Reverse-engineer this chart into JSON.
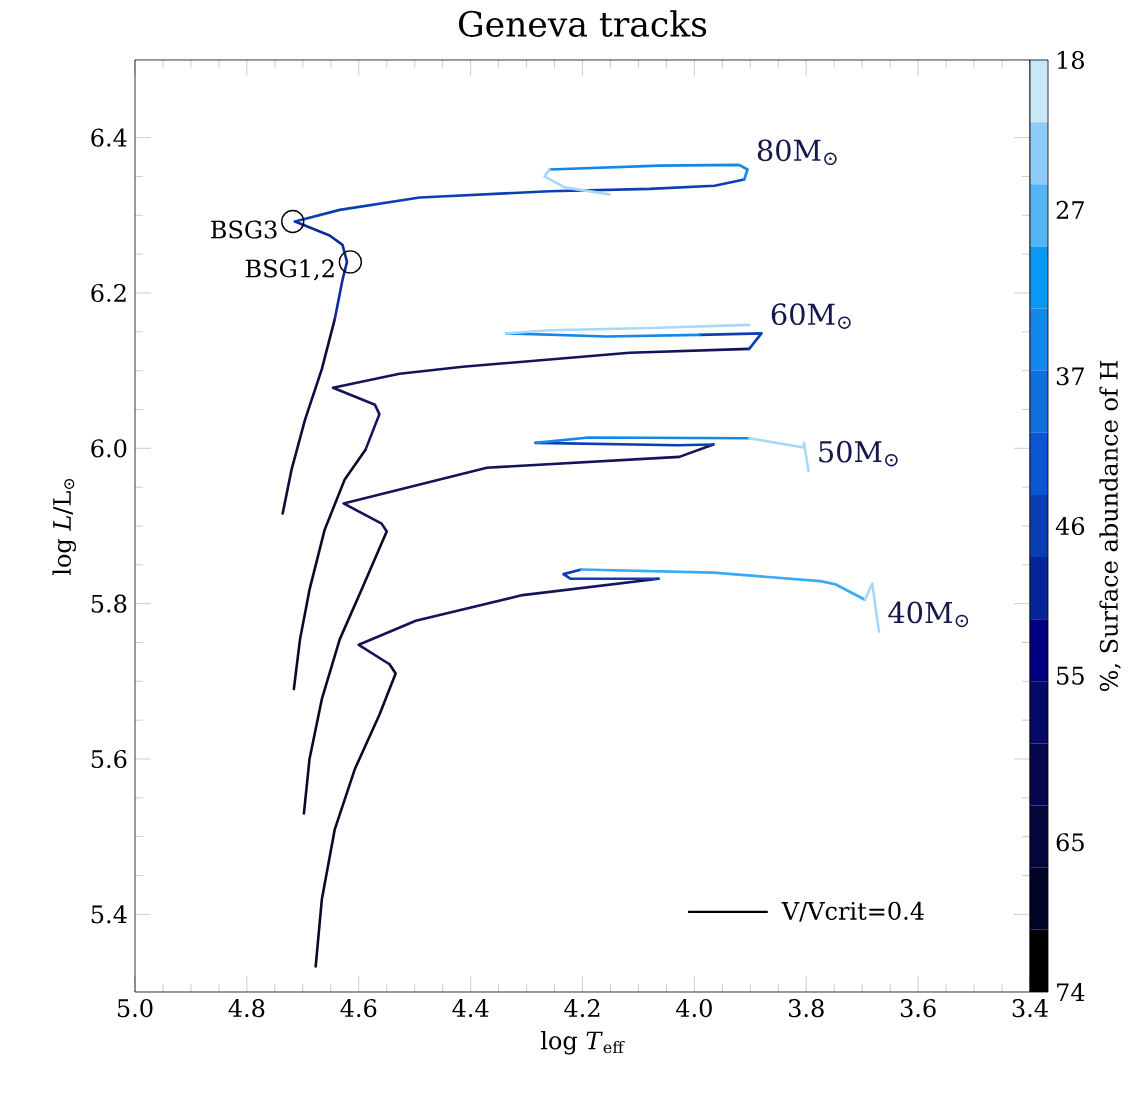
{
  "chart_data": {
    "type": "line",
    "title": "Geneva tracks",
    "xlabel": "log *T*$_{eff}$",
    "ylabel": "log *L*/L$_{⊙}$",
    "clabel": "%, Surface abundance of H",
    "xlim": [
      5.0,
      3.4
    ],
    "xticks": [
      {
        "value": 5.0,
        "label": "5.0"
      },
      4.8,
      4.6,
      4.4,
      4.2,
      {
        "value": 4.0,
        "label": "4.0"
      },
      3.8,
      3.6,
      3.4
    ],
    "ylim": [
      5.3,
      6.5
    ],
    "yticks": [
      5.4,
      5.6,
      5.8,
      {
        "value": 6.0,
        "label": "6.0"
      },
      6.2,
      6.4
    ],
    "clim": [
      74,
      18
    ],
    "cticks": [
      18,
      27,
      37,
      46,
      55,
      65,
      74
    ],
    "grid": false,
    "marker": "none",
    "line_style": "solid",
    "series": [
      {
        "color": "#0c0c3a",
        "x": [
          4.736,
          4.72,
          4.696,
          4.666,
          4.643
        ],
        "values": [
          5.916,
          5.973,
          6.037,
          6.102,
          6.166
        ]
      },
      {
        "color": "#0f2a99",
        "x": [
          4.643,
          4.629,
          4.621,
          4.629,
          4.652,
          4.714
        ],
        "values": [
          6.166,
          6.217,
          6.24,
          6.262,
          6.274,
          6.292
        ]
      },
      {
        "color": "#0d3fb4",
        "x": [
          4.714,
          4.634,
          4.491,
          4.259,
          4.08,
          3.964,
          3.911
        ],
        "values": [
          6.292,
          6.307,
          6.323,
          6.331,
          6.334,
          6.338,
          6.346
        ]
      },
      {
        "name": "80M$_{⊙}$",
        "color": "#1487ea",
        "x": [
          3.911,
          3.905,
          3.92,
          4.063,
          4.259
        ],
        "values": [
          6.346,
          6.359,
          6.365,
          6.364,
          6.359
        ]
      },
      {
        "color": "#a8d8f8",
        "x": [
          4.259,
          4.268,
          4.232,
          4.152
        ],
        "values": [
          6.359,
          6.35,
          6.336,
          6.327
        ]
      },
      {
        "color": "#0a0a28",
        "x": [
          4.716,
          4.705,
          4.688,
          4.661,
          4.625,
          4.588
        ],
        "values": [
          5.69,
          5.754,
          5.818,
          5.895,
          5.96,
          5.998
        ]
      },
      {
        "color": "#14145a",
        "x": [
          4.588,
          4.563,
          4.571,
          4.646,
          4.527,
          4.414,
          4.116,
          3.902
        ],
        "values": [
          5.998,
          6.044,
          6.056,
          6.078,
          6.096,
          6.105,
          6.123,
          6.128
        ]
      },
      {
        "name": "60M$_{⊙}$",
        "color": "#0d3fb4",
        "x": [
          3.902,
          3.88,
          3.991
        ],
        "values": [
          6.128,
          6.148,
          6.146
        ]
      },
      {
        "color": "#1487ea",
        "x": [
          3.991,
          4.157,
          4.336
        ],
        "values": [
          6.146,
          6.144,
          6.148
        ]
      },
      {
        "color": "#a8d8f8",
        "x": [
          4.336,
          4.259,
          4.08,
          3.902
        ],
        "values": [
          6.148,
          6.152,
          6.155,
          6.159
        ]
      },
      {
        "color": "#0a0a28",
        "x": [
          4.698,
          4.688,
          4.666,
          4.634,
          4.595,
          4.55
        ],
        "values": [
          5.53,
          5.6,
          5.677,
          5.754,
          5.818,
          5.893
        ]
      },
      {
        "color": "#14145a",
        "x": [
          4.55,
          4.559,
          4.627,
          4.371,
          4.027,
          3.966
        ],
        "values": [
          5.893,
          5.903,
          5.929,
          5.975,
          5.989,
          6.005
        ]
      },
      {
        "color": "#0d3fb4",
        "x": [
          3.966,
          4.029,
          4.284
        ],
        "values": [
          6.005,
          6.004,
          6.007
        ]
      },
      {
        "color": "#1487ea",
        "x": [
          4.284,
          4.189,
          3.902
        ],
        "values": [
          6.007,
          6.014,
          6.013
        ]
      },
      {
        "name": "50M$_{⊙}$",
        "color": "#a8d8f8",
        "x": [
          3.902,
          3.805,
          3.804,
          3.796
        ],
        "values": [
          6.013,
          6.001,
          6.007,
          5.971
        ]
      },
      {
        "color": "#0a0a28",
        "x": [
          4.677,
          4.666,
          4.643,
          4.607,
          4.563,
          4.534,
          4.545
        ],
        "values": [
          5.333,
          5.419,
          5.509,
          5.587,
          5.657,
          5.71,
          5.722
        ]
      },
      {
        "color": "#14145a",
        "x": [
          4.545,
          4.6,
          4.498,
          4.307,
          4.064
        ],
        "values": [
          5.722,
          5.747,
          5.778,
          5.811,
          5.832
        ]
      },
      {
        "color": "#0d3fb4",
        "x": [
          4.064,
          4.221,
          4.234,
          4.202
        ],
        "values": [
          5.832,
          5.832,
          5.838,
          5.844
        ]
      },
      {
        "color": "#3aaaf5",
        "x": [
          4.202,
          3.966,
          3.775,
          3.748,
          3.695
        ],
        "values": [
          5.844,
          5.84,
          5.829,
          5.825,
          5.805
        ]
      },
      {
        "name": "40M$_{⊙}$",
        "color": "#a8d8f8",
        "x": [
          3.695,
          3.682,
          3.67
        ],
        "values": [
          5.805,
          5.826,
          5.764
        ]
      }
    ],
    "annotations": [
      {
        "text": "BSG3",
        "x": 4.718,
        "y": 6.292
      },
      {
        "text": "BSG1,2",
        "x": 4.615,
        "y": 6.24
      },
      "V/Vcrit=0.4"
    ]
  }
}
